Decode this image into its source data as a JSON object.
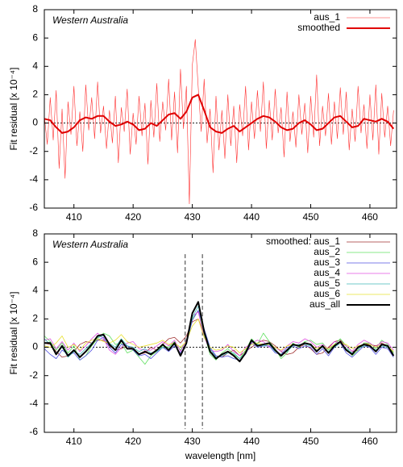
{
  "chart_data": [
    {
      "type": "line",
      "annotation": "Western Australia",
      "ylabel": "Fit residual  [x 10⁻⁴]",
      "xlim": [
        405,
        464.5
      ],
      "ylim": [
        -6,
        8
      ],
      "xticks": [
        410,
        420,
        430,
        440,
        450,
        460
      ],
      "yticks": [
        -6,
        -4,
        -2,
        0,
        2,
        4,
        6,
        8
      ],
      "hlines": [
        0
      ],
      "legend": "upper right",
      "series": [
        {
          "name": "aus_1",
          "color": "#ff3030",
          "width": 0.6,
          "x": [
            405,
            405.5,
            406,
            406.5,
            407,
            407.5,
            408,
            408.5,
            409,
            409.5,
            410,
            410.5,
            411,
            411.5,
            412,
            412.5,
            413,
            413.5,
            414,
            414.5,
            415,
            415.5,
            416,
            416.5,
            417,
            417.5,
            418,
            418.5,
            419,
            419.5,
            420,
            420.5,
            421,
            421.5,
            422,
            422.5,
            423,
            423.5,
            424,
            424.5,
            425,
            425.5,
            426,
            426.5,
            427,
            427.5,
            428,
            428.5,
            429,
            429.5,
            430,
            430.5,
            431,
            431.5,
            432,
            432.5,
            433,
            433.5,
            434,
            434.5,
            435,
            435.5,
            436,
            436.5,
            437,
            437.5,
            438,
            438.5,
            439,
            439.5,
            440,
            440.5,
            441,
            441.5,
            442,
            442.5,
            443,
            443.5,
            444,
            444.5,
            445,
            445.5,
            446,
            446.5,
            447,
            447.5,
            448,
            448.5,
            449,
            449.5,
            450,
            450.5,
            451,
            451.5,
            452,
            452.5,
            453,
            453.5,
            454,
            454.5,
            455,
            455.5,
            456,
            456.5,
            457,
            457.5,
            458,
            458.5,
            459,
            459.5,
            460,
            460.5,
            461,
            461.5,
            462,
            462.5,
            463,
            463.5,
            464
          ],
          "values": [
            0.5,
            -1.5,
            1.8,
            -1.2,
            2.3,
            -3.2,
            1.0,
            -3.9,
            1.5,
            -0.8,
            2.6,
            -1.6,
            0.8,
            -2.0,
            2.7,
            -0.5,
            1.8,
            -1.1,
            2.9,
            -0.7,
            1.2,
            -1.8,
            0.9,
            -1.4,
            1.9,
            -2.8,
            1.1,
            -0.6,
            2.4,
            -2.2,
            0.7,
            -1.5,
            1.9,
            -0.9,
            1.4,
            -2.9,
            1.6,
            -1.0,
            2.8,
            -1.3,
            1.5,
            -0.5,
            3.1,
            -1.2,
            2.2,
            -2.1,
            3.8,
            -0.4,
            2.6,
            -5.7,
            4.1,
            5.9,
            2.5,
            -0.6,
            3.1,
            -1.4,
            1.0,
            -3.5,
            1.9,
            -1.9,
            0.9,
            -2.5,
            2.0,
            -1.6,
            1.2,
            -2.8,
            1.3,
            -0.9,
            2.6,
            -1.9,
            1.5,
            -1.1,
            2.3,
            -0.6,
            2.9,
            -1.8,
            1.6,
            -1.2,
            2.4,
            -0.7,
            1.1,
            -2.4,
            2.2,
            -1.3,
            0.8,
            -1.7,
            2.0,
            -0.8,
            1.4,
            -2.1,
            1.9,
            -1.0,
            3.4,
            -1.6,
            1.2,
            -0.9,
            2.1,
            -1.5,
            1.5,
            -1.1,
            2.5,
            -0.8,
            2.2,
            -1.9,
            1.0,
            -1.3,
            2.6,
            -0.7,
            1.3,
            -1.8,
            2.0,
            -1.2,
            2.7,
            -2.2,
            2.1,
            -1.0,
            1.2,
            -1.6,
            0.9
          ]
        },
        {
          "name": "smoothed",
          "color": "#e00000",
          "width": 2,
          "x": [
            405,
            406,
            407,
            408,
            409,
            410,
            411,
            412,
            413,
            414,
            415,
            416,
            417,
            418,
            419,
            420,
            421,
            422,
            423,
            424,
            425,
            426,
            427,
            428,
            429,
            430,
            431,
            432,
            433,
            434,
            435,
            436,
            437,
            438,
            439,
            440,
            441,
            442,
            443,
            444,
            445,
            446,
            447,
            448,
            449,
            450,
            451,
            452,
            453,
            454,
            455,
            456,
            457,
            458,
            459,
            460,
            461,
            462,
            463,
            464
          ],
          "values": [
            0.3,
            0.2,
            -0.3,
            -0.7,
            -0.6,
            -0.3,
            0.2,
            0.4,
            0.3,
            0.5,
            0.5,
            0.1,
            -0.2,
            -0.1,
            0.1,
            -0.1,
            -0.5,
            -0.4,
            0,
            -0.2,
            0.2,
            0.6,
            0.7,
            0.3,
            0.8,
            1.8,
            2.0,
            0.9,
            -0.3,
            -0.6,
            -0.7,
            -0.4,
            -0.2,
            -0.6,
            -0.3,
            0,
            0.3,
            0.5,
            0.4,
            0.1,
            -0.3,
            -0.5,
            -0.4,
            0,
            0.2,
            -0.1,
            -0.5,
            -0.4,
            0,
            0.4,
            0.5,
            0.1,
            -0.3,
            -0.2,
            0.3,
            0.2,
            0.1,
            0.3,
            0.1,
            -0.4
          ]
        }
      ]
    },
    {
      "type": "line",
      "annotation": "Western Australia",
      "ylabel": "Fit residual  [x 10⁻⁴]",
      "xlabel": "wavelength  [nm]",
      "xlim": [
        405,
        464.5
      ],
      "ylim": [
        -6,
        8
      ],
      "xticks": [
        410,
        420,
        430,
        440,
        450,
        460
      ],
      "yticks": [
        -6,
        -4,
        -2,
        0,
        2,
        4,
        6,
        8
      ],
      "hlines": [
        0
      ],
      "vlines": [
        428.8,
        431.7
      ],
      "legend": "upper right",
      "x": [
        405,
        406,
        407,
        408,
        409,
        410,
        411,
        412,
        413,
        414,
        415,
        416,
        417,
        418,
        419,
        420,
        421,
        422,
        423,
        424,
        425,
        426,
        427,
        428,
        429,
        430,
        431,
        432,
        433,
        434,
        435,
        436,
        437,
        438,
        439,
        440,
        441,
        442,
        443,
        444,
        445,
        446,
        447,
        448,
        449,
        450,
        451,
        452,
        453,
        454,
        455,
        456,
        457,
        458,
        459,
        460,
        461,
        462,
        463,
        464
      ],
      "series": [
        {
          "name": "smoothed: aus_1",
          "color": "#a03030",
          "width": 0.8,
          "values": [
            0.3,
            0.2,
            -0.3,
            -0.7,
            -0.6,
            -0.3,
            0.2,
            0.4,
            0.3,
            0.5,
            0.5,
            0.1,
            -0.2,
            -0.1,
            0.1,
            -0.1,
            -0.5,
            -0.4,
            0,
            -0.2,
            0.2,
            0.6,
            0.7,
            0.3,
            0.8,
            1.8,
            2.0,
            0.9,
            -0.3,
            -0.6,
            -0.7,
            -0.4,
            -0.2,
            -0.6,
            -0.3,
            0,
            0.3,
            0.5,
            0.4,
            0.1,
            -0.3,
            -0.5,
            -0.4,
            0,
            0.2,
            -0.1,
            -0.5,
            -0.4,
            0,
            0.4,
            0.5,
            0.1,
            -0.3,
            -0.2,
            0.3,
            0.2,
            0.1,
            0.3,
            0.1,
            -0.4
          ]
        },
        {
          "name": "aus_2",
          "color": "#60e060",
          "width": 0.8,
          "values": [
            0.8,
            0.4,
            -0.2,
            0.3,
            -0.4,
            0.1,
            -0.9,
            -0.6,
            0.1,
            0.6,
            1.0,
            0.8,
            0.2,
            0.3,
            -0.4,
            -0.2,
            -0.7,
            -1.2,
            -0.6,
            -0.3,
            0.1,
            0.0,
            0.4,
            -0.2,
            0.5,
            2.0,
            2.6,
            0.9,
            -0.5,
            -0.9,
            -0.4,
            -0.1,
            -0.5,
            -0.8,
            -0.2,
            0.6,
            0.2,
            1.0,
            0.4,
            -0.1,
            -0.8,
            -0.4,
            0.3,
            0.0,
            0.4,
            0.5,
            0.2,
            0.3,
            -0.2,
            0.2,
            0.6,
            0.1,
            -0.6,
            -0.2,
            0.3,
            0.3,
            -0.1,
            0.5,
            0.2,
            -0.4
          ]
        },
        {
          "name": "aus_3",
          "color": "#5050e0",
          "width": 0.8,
          "values": [
            -0.1,
            -0.5,
            -0.8,
            -0.2,
            -0.5,
            -0.4,
            -0.9,
            -0.6,
            -0.2,
            0.5,
            0.7,
            0.0,
            -0.4,
            0.2,
            0.1,
            -0.2,
            -0.6,
            -0.5,
            -0.8,
            -0.4,
            0.0,
            -0.3,
            0.1,
            -0.4,
            0.2,
            1.9,
            2.6,
            1.3,
            0.0,
            -0.6,
            -0.7,
            -0.6,
            -0.8,
            -0.9,
            -0.5,
            0.3,
            0.0,
            0.1,
            0.1,
            -0.4,
            -0.5,
            0.0,
            0.1,
            -0.1,
            0.1,
            0.0,
            -0.5,
            -0.1,
            -0.6,
            0.0,
            0.3,
            -0.4,
            -0.7,
            -0.3,
            0.1,
            0.0,
            -0.5,
            0.0,
            -0.1,
            -0.7
          ]
        },
        {
          "name": "aus_4",
          "color": "#e050e0",
          "width": 0.8,
          "values": [
            0.5,
            0.6,
            -0.1,
            0.4,
            -0.2,
            0.3,
            -0.3,
            0.1,
            0.6,
            1.0,
            0.6,
            -0.2,
            -0.5,
            0.0,
            0.3,
            0.4,
            -0.1,
            -0.2,
            -0.2,
            0.1,
            0.4,
            0.1,
            0.5,
            -0.3,
            0.5,
            2.2,
            2.5,
            0.7,
            -0.2,
            -0.3,
            -0.2,
            0.2,
            -0.3,
            -0.6,
            0.0,
            0.3,
            0.5,
            0.4,
            0.0,
            0.0,
            -0.3,
            0.1,
            0.4,
            0.3,
            0.6,
            0.4,
            0.0,
            0.2,
            -0.1,
            0.4,
            0.3,
            0.1,
            -0.3,
            0.2,
            0.5,
            0.3,
            0.0,
            0.4,
            0.3,
            -0.2
          ]
        },
        {
          "name": "aus_5",
          "color": "#40b8b8",
          "width": 0.8,
          "values": [
            0.6,
            0.2,
            -0.4,
            0.0,
            -0.7,
            -0.3,
            -0.5,
            -0.1,
            0.3,
            0.7,
            0.8,
            0.3,
            0.0,
            0.6,
            0.1,
            0.0,
            -0.3,
            -0.1,
            -0.4,
            -0.3,
            0.0,
            -0.1,
            0.2,
            -0.5,
            0.2,
            2.1,
            2.9,
            1.2,
            -0.1,
            -0.7,
            -0.6,
            -0.4,
            -0.4,
            -0.8,
            -0.4,
            0.4,
            0.2,
            0.1,
            0.2,
            -0.3,
            -0.5,
            -0.3,
            0.1,
            0.2,
            0.2,
            0.1,
            -0.2,
            0.0,
            -0.3,
            0.0,
            0.3,
            -0.1,
            -0.4,
            -0.1,
            0.1,
            0.1,
            -0.2,
            0.1,
            0.0,
            -0.5
          ]
        },
        {
          "name": "aus_6",
          "color": "#e8e030",
          "width": 0.8,
          "values": [
            0.1,
            0.0,
            0.3,
            0.8,
            0.0,
            0.2,
            -0.2,
            0.3,
            0.5,
            0.6,
            0.4,
            0.3,
            0.5,
            0.9,
            0.4,
            0.2,
            0.0,
            0.1,
            0.2,
            0.3,
            0.5,
            0.2,
            0.3,
            0.0,
            0.4,
            1.5,
            2.0,
            0.7,
            0.0,
            -0.2,
            -0.1,
            0.1,
            0.0,
            -0.4,
            -0.1,
            0.2,
            0.3,
            0.2,
            0.2,
            0.0,
            -0.2,
            0.1,
            0.2,
            0.1,
            0.3,
            0.2,
            -0.1,
            0.1,
            -0.1,
            0.2,
            0.3,
            0.2,
            -0.1,
            0.1,
            0.2,
            0.2,
            0.0,
            0.2,
            0.1,
            -0.3
          ]
        },
        {
          "name": "aus_all",
          "color": "#000000",
          "width": 2,
          "values": [
            0.3,
            0.3,
            -0.5,
            0.1,
            -0.6,
            -0.2,
            -0.7,
            -0.3,
            0.2,
            0.8,
            0.9,
            0.2,
            -0.2,
            0.5,
            -0.1,
            -0.1,
            -0.5,
            -0.3,
            -0.5,
            -0.2,
            0.2,
            -0.2,
            0.3,
            -0.6,
            0.3,
            2.4,
            3.2,
            1.1,
            -0.3,
            -0.8,
            -0.5,
            -0.3,
            -0.6,
            -1.0,
            -0.4,
            0.5,
            0.1,
            0.2,
            0.3,
            -0.2,
            -0.6,
            -0.2,
            0.2,
            0.1,
            0.3,
            0.2,
            -0.3,
            0.1,
            -0.4,
            0.1,
            0.4,
            -0.2,
            -0.5,
            0,
            0.2,
            0.1,
            -0.3,
            0.2,
            0.1,
            -0.6
          ]
        }
      ]
    }
  ]
}
